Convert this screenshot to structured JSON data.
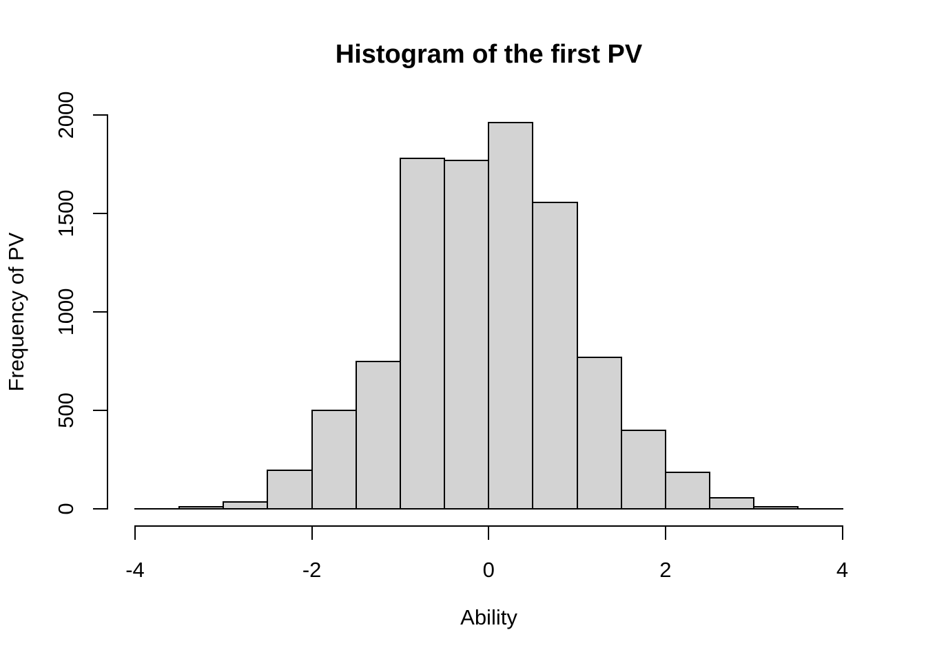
{
  "figure": {
    "title": "Histogram of the first PV",
    "xlabel": "Ability",
    "ylabel": "Frequency of PV"
  },
  "chart_data": {
    "type": "bar",
    "subtype": "histogram",
    "title": "Histogram of the first PV",
    "xlabel": "Ability",
    "ylabel": "Frequency of PV",
    "bin_width": 0.5,
    "bin_edges": [
      -3.5,
      -3.0,
      -2.5,
      -2.0,
      -1.5,
      -1.0,
      -0.5,
      0.0,
      0.5,
      1.0,
      1.5,
      2.0,
      2.5,
      3.0,
      3.5
    ],
    "frequencies": [
      12,
      35,
      195,
      500,
      750,
      1780,
      1770,
      1960,
      1555,
      770,
      400,
      185,
      55,
      10
    ],
    "x_ticks": [
      -4,
      -2,
      0,
      2,
      4
    ],
    "y_ticks": [
      0,
      500,
      1000,
      1500,
      2000
    ],
    "xlim": [
      -4,
      4
    ],
    "ylim": [
      0,
      2000
    ],
    "grid": false,
    "legend_position": "none",
    "colors": {
      "bar_fill": "#d3d3d3",
      "bar_border": "#000000",
      "axis": "#000000",
      "text": "#000000",
      "background": "#ffffff"
    }
  }
}
